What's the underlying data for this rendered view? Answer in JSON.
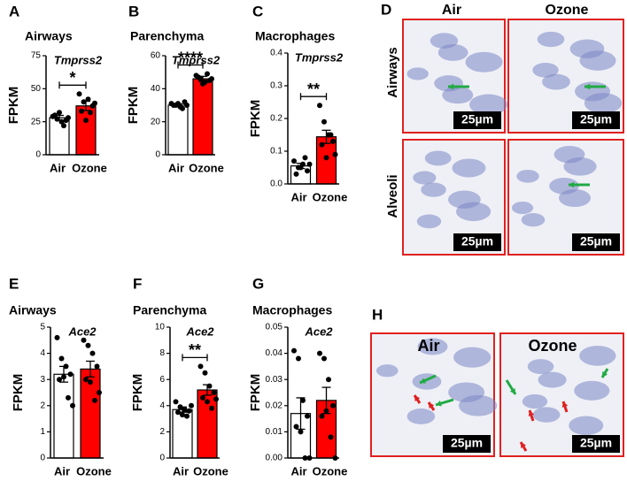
{
  "chart_data": [
    {
      "type": "bar",
      "panel": "A",
      "title": "Airways",
      "gene": "Tmprss2",
      "ylabel": "FPKM",
      "categories": [
        "Air",
        "Ozone"
      ],
      "colors": [
        "#ffffff",
        "#ff0000"
      ],
      "values": [
        28,
        37
      ],
      "errors": [
        1.8,
        3.5
      ],
      "points": [
        [
          29,
          27,
          25,
          26,
          30,
          32,
          22,
          28
        ],
        [
          46,
          40,
          42,
          37,
          33,
          26,
          32,
          39
        ]
      ],
      "significance": "*",
      "ylim": [
        0,
        75
      ],
      "yticks": [
        0,
        25,
        50,
        75
      ]
    },
    {
      "type": "bar",
      "panel": "B",
      "title": "Parenchyma",
      "gene": "Tmprss2",
      "ylabel": "FPKM",
      "categories": [
        "Air",
        "Ozone"
      ],
      "colors": [
        "#ffffff",
        "#ff0000"
      ],
      "values": [
        30,
        46
      ],
      "errors": [
        0.8,
        1.5
      ],
      "points": [
        [
          31,
          30,
          29,
          32,
          30,
          31,
          28,
          30
        ],
        [
          48,
          46,
          44,
          45,
          47,
          43,
          49,
          46
        ]
      ],
      "significance": "****",
      "ylim": [
        0,
        60
      ],
      "yticks": [
        0,
        20,
        40,
        60
      ]
    },
    {
      "type": "bar",
      "panel": "C",
      "title": "Macrophages",
      "gene": "Tmprss2",
      "ylabel": "FPKM",
      "categories": [
        "Air",
        "Ozone"
      ],
      "colors": [
        "#ffffff",
        "#ff0000"
      ],
      "values": [
        0.055,
        0.144
      ],
      "errors": [
        0.008,
        0.02
      ],
      "points": [
        [
          0.07,
          0.05,
          0.06,
          0.04,
          0.03,
          0.05,
          0.08,
          0.06
        ],
        [
          0.24,
          0.19,
          0.15,
          0.13,
          0.12,
          0.08,
          0.15,
          0.09
        ]
      ],
      "significance": "**",
      "ylim": [
        0,
        0.4
      ],
      "yticks": [
        {
          "value": 0,
          "label": "0.0"
        },
        0.1,
        0.2,
        0.3,
        0.4
      ]
    },
    {
      "type": "bar",
      "panel": "E",
      "title": "Airways",
      "gene": "Ace2",
      "ylabel": "FPKM",
      "categories": [
        "Air",
        "Ozone"
      ],
      "colors": [
        "#ffffff",
        "#ff0000"
      ],
      "values": [
        3.2,
        3.4
      ],
      "errors": [
        0.3,
        0.3
      ],
      "points": [
        [
          4.6,
          3.8,
          3.5,
          3.2,
          3.0,
          3.1,
          2.3,
          2.0
        ],
        [
          4.5,
          4.3,
          4.0,
          3.5,
          3.0,
          2.9,
          2.2,
          2.5
        ]
      ],
      "ylim": [
        0,
        5
      ],
      "yticks": [
        0,
        1,
        2,
        3,
        4,
        5
      ]
    },
    {
      "type": "bar",
      "panel": "F",
      "title": "Parenchyma",
      "gene": "Ace2",
      "ylabel": "FPKM",
      "categories": [
        "Air",
        "Ozone"
      ],
      "colors": [
        "#ffffff",
        "#ff0000"
      ],
      "values": [
        3.7,
        5.2
      ],
      "errors": [
        0.2,
        0.4
      ],
      "points": [
        [
          4.3,
          3.9,
          3.7,
          3.6,
          3.5,
          3.3,
          3.2,
          4.0
        ],
        [
          7.0,
          6.5,
          5.5,
          5.0,
          4.6,
          4.3,
          3.8,
          4.5
        ]
      ],
      "significance": "**",
      "ylim": [
        0,
        10
      ],
      "yticks": [
        0,
        2,
        4,
        6,
        8,
        10
      ]
    },
    {
      "type": "bar",
      "panel": "G",
      "title": "Macrophages",
      "gene": "Ace2",
      "ylabel": "FPKM",
      "categories": [
        "Air",
        "Ozone"
      ],
      "colors": [
        "#ffffff",
        "#ff0000"
      ],
      "values": [
        0.017,
        0.022
      ],
      "errors": [
        0.006,
        0.005
      ],
      "points": [
        [
          0.041,
          0.038,
          0.022,
          0.016,
          0.012,
          0.01,
          0.0,
          0.0
        ],
        [
          0.04,
          0.038,
          0.03,
          0.02,
          0.016,
          0.018,
          0.008,
          0.0
        ]
      ],
      "ylim": [
        0,
        0.05
      ],
      "yticks": [
        {
          "value": 0,
          "label": "0.00"
        },
        {
          "value": 0.01,
          "label": "0.01"
        },
        {
          "value": 0.02,
          "label": "0.02"
        },
        {
          "value": 0.03,
          "label": "0.03"
        },
        {
          "value": 0.04,
          "label": "0.04"
        },
        {
          "value": 0.05,
          "label": "0.05"
        }
      ]
    }
  ],
  "image_panels": [
    {
      "panel": "D",
      "columns": [
        "Air",
        "Ozone"
      ],
      "rows": [
        "Airways",
        "Alveoli"
      ],
      "scale_bar": "25µm"
    },
    {
      "panel": "H",
      "columns": [
        "Air",
        "Ozone"
      ],
      "scale_bar": "25µm"
    }
  ]
}
